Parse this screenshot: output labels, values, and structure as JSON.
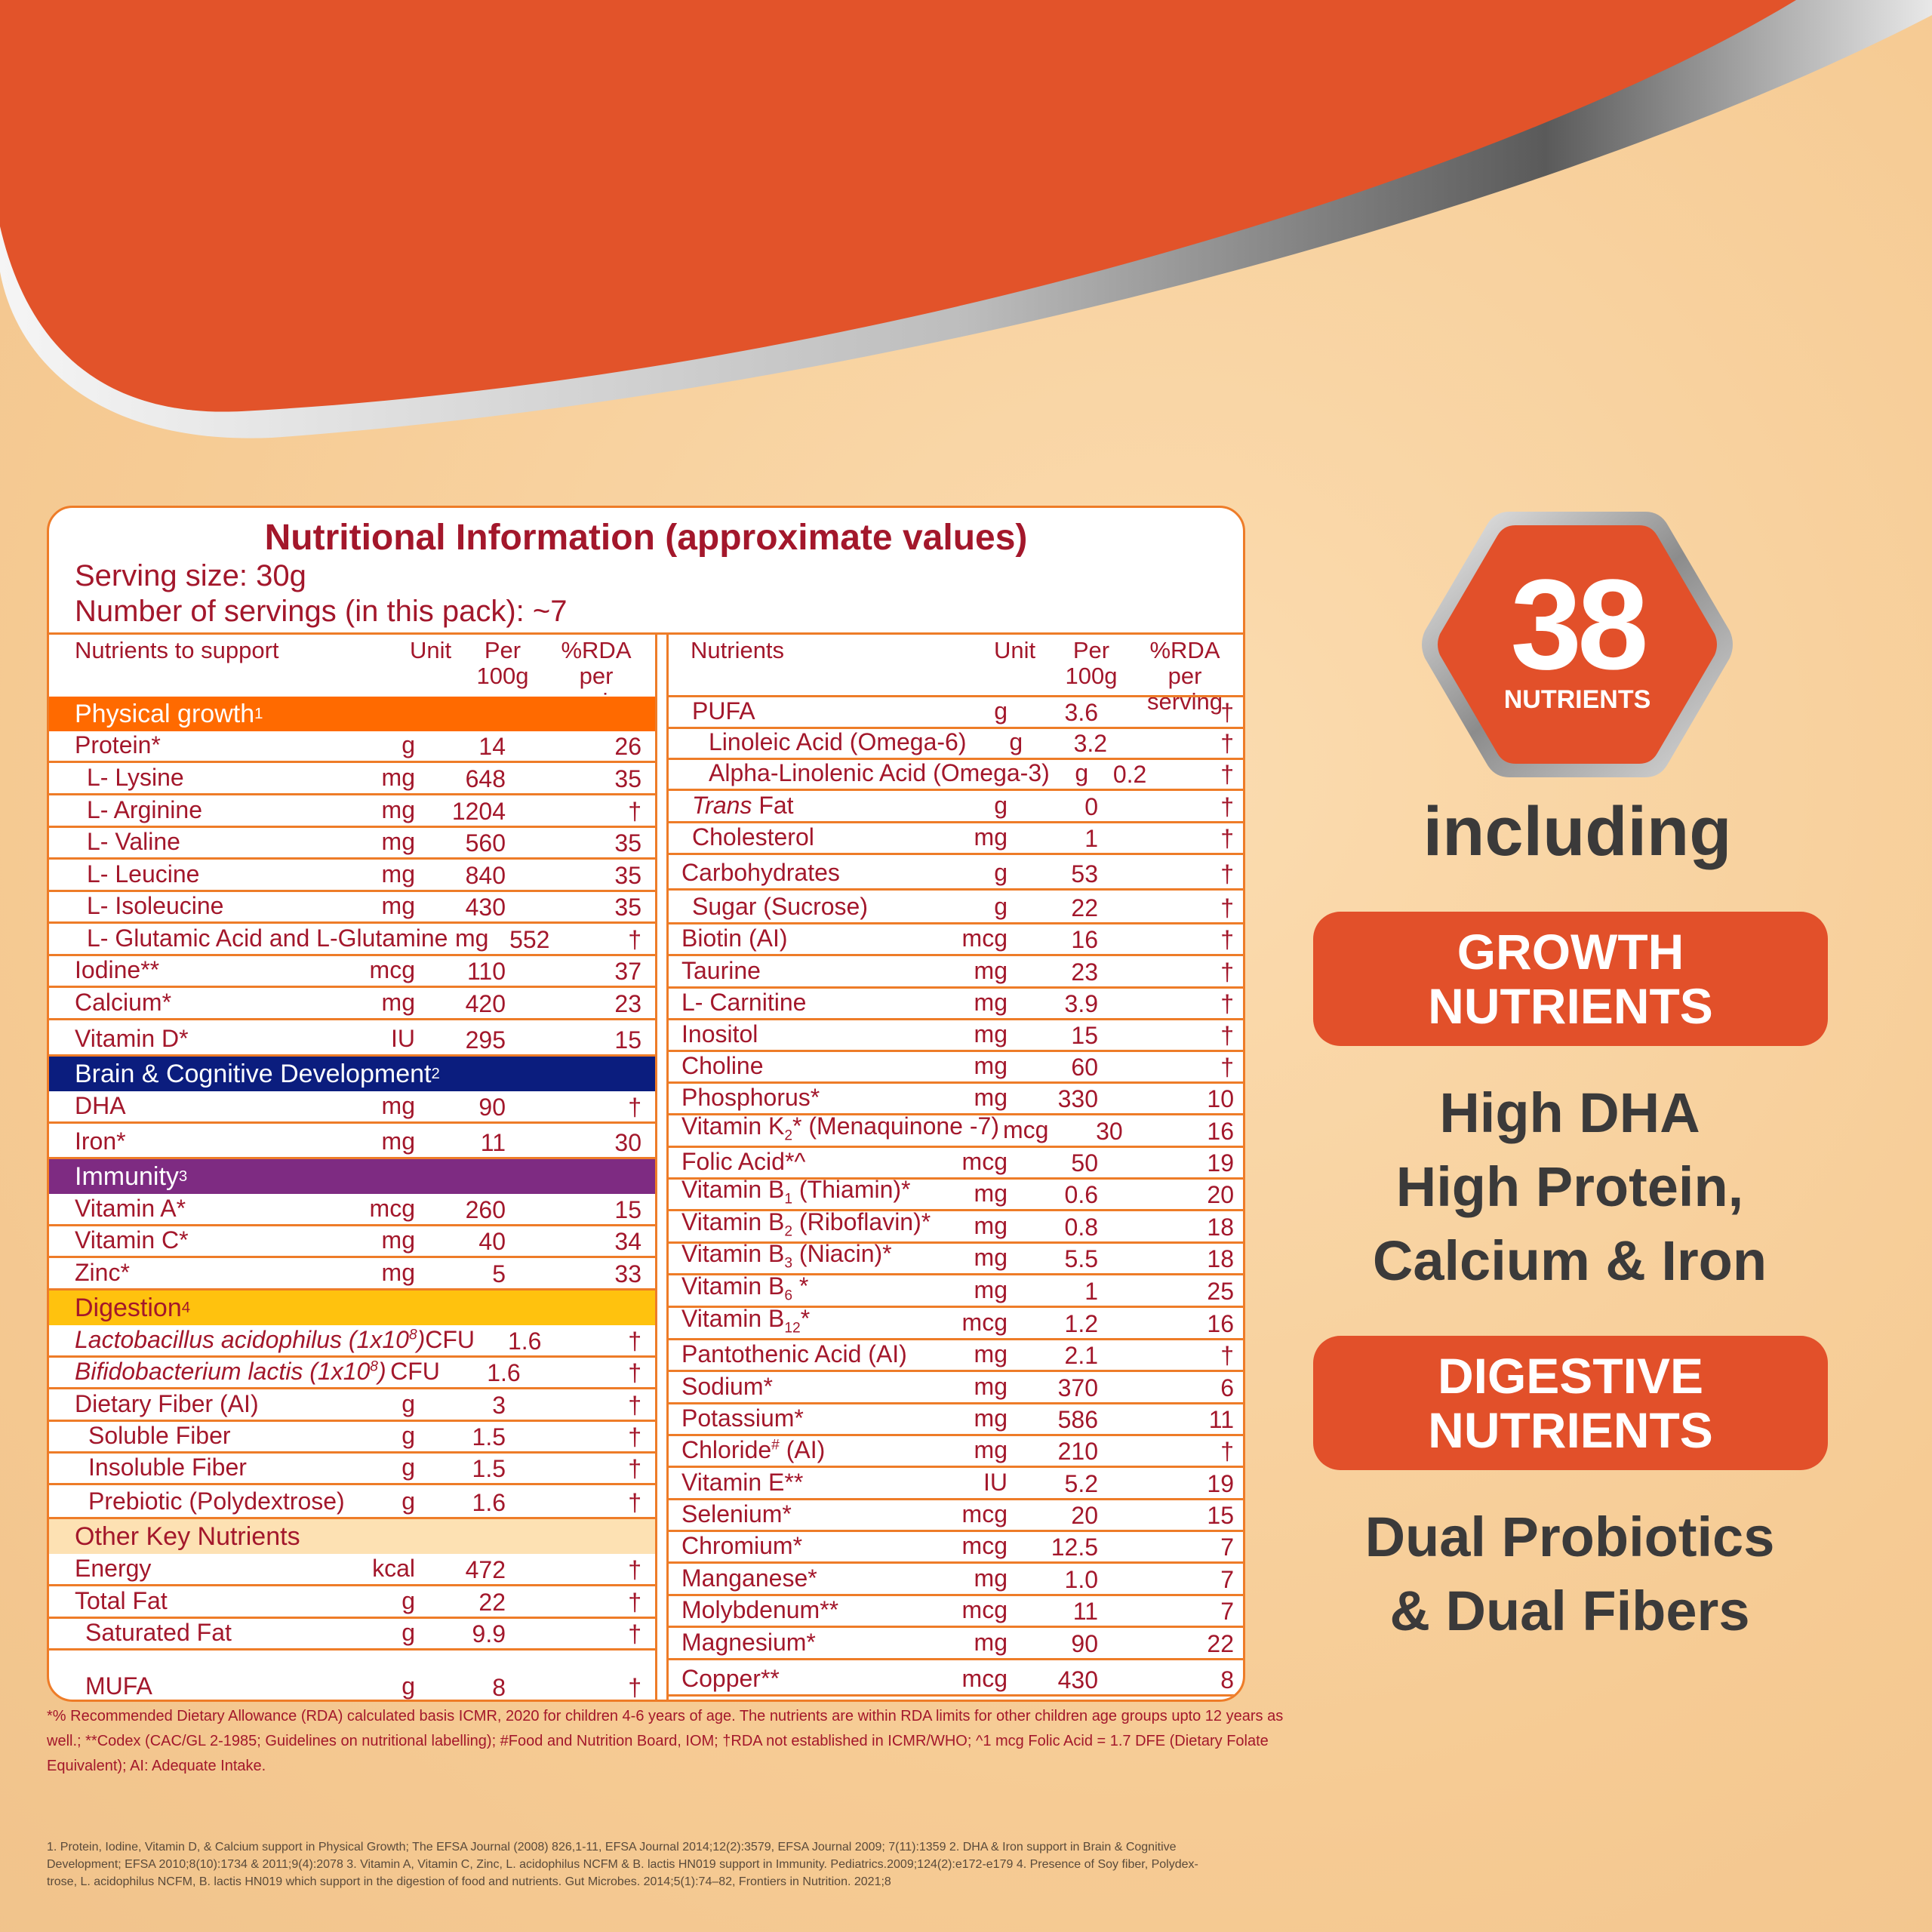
{
  "colors": {
    "orange": "#ee7c28",
    "maroon": "#a3172b",
    "physical": "#ff6a00",
    "brain": "#0b1d7e",
    "immunity": "#7e2b82",
    "digestion": "#ffc20e",
    "other": "#fde1b3",
    "badge": "#e2502a"
  },
  "panel": {
    "title": "Nutritional Information (approximate values)",
    "serving_size": "Serving size: 30g",
    "servings": "Number of servings (in this pack): ~7"
  },
  "left_header": {
    "nutrients": "Nutrients to support",
    "unit": "Unit",
    "per1": "Per",
    "per2": "100g",
    "rda1": "%RDA",
    "rda2": "per serving"
  },
  "right_header": {
    "nutrients": "Nutrients",
    "unit": "Unit",
    "per1": "Per",
    "per2": "100g",
    "rda1": "%RDA",
    "rda2": "per serving"
  },
  "sections": {
    "physical": {
      "label": "Physical growth",
      "sup": "1"
    },
    "brain": {
      "label": "Brain & Cognitive Development",
      "sup": "2"
    },
    "immunity": {
      "label": "Immunity",
      "sup": "3"
    },
    "digestion": {
      "label": "Digestion",
      "sup": "4"
    },
    "other": {
      "label": "Other Key Nutrients",
      "sup": ""
    }
  },
  "left_rows": [
    {
      "name": "Protein*",
      "unit": "g",
      "per": "14",
      "rda": "26"
    },
    {
      "name": "L- Lysine",
      "unit": "mg",
      "per": "648",
      "rda": "35"
    },
    {
      "name": "L- Arginine",
      "unit": "mg",
      "per": "1204",
      "rda": "†"
    },
    {
      "name": "L- Valine",
      "unit": "mg",
      "per": "560",
      "rda": "35"
    },
    {
      "name": "L- Leucine",
      "unit": "mg",
      "per": "840",
      "rda": "35"
    },
    {
      "name": "L- Isoleucine",
      "unit": "mg",
      "per": "430",
      "rda": "35"
    },
    {
      "name": "L- Glutamic Acid and L-Glutamine",
      "unit": "mg",
      "per": "552",
      "rda": "†"
    },
    {
      "name": "Iodine**",
      "unit": "mcg",
      "per": "110",
      "rda": "37"
    },
    {
      "name": "Calcium*",
      "unit": "mg",
      "per": "420",
      "rda": "23"
    },
    {
      "name": "Vitamin D*",
      "unit": "IU",
      "per": "295",
      "rda": "15"
    },
    {
      "name": "DHA",
      "unit": "mg",
      "per": "90",
      "rda": "†"
    },
    {
      "name": "Iron*",
      "unit": "mg",
      "per": "11",
      "rda": "30"
    },
    {
      "name": "Vitamin A*",
      "unit": "mcg",
      "per": "260",
      "rda": "15"
    },
    {
      "name": "Vitamin C*",
      "unit": "mg",
      "per": "40",
      "rda": "34"
    },
    {
      "name": "Zinc*",
      "unit": "mg",
      "per": "5",
      "rda": "33"
    },
    {
      "name": "Lactobacillus acidophilus (1x10",
      "sup": "8",
      "tail": ")",
      "unit": "CFU",
      "per": "1.6",
      "rda": "†"
    },
    {
      "name": "Bifidobacterium lactis (1x10",
      "sup": "8",
      "tail": ")",
      "unit": "CFU",
      "per": "1.6",
      "rda": "†"
    },
    {
      "name": "Dietary Fiber (AI)",
      "unit": "g",
      "per": "3",
      "rda": "†"
    },
    {
      "name": "Soluble Fiber",
      "unit": "g",
      "per": "1.5",
      "rda": "†"
    },
    {
      "name": "Insoluble Fiber",
      "unit": "g",
      "per": "1.5",
      "rda": "†"
    },
    {
      "name": "Prebiotic (Polydextrose)",
      "unit": "g",
      "per": "1.6",
      "rda": "†"
    },
    {
      "name": "Energy",
      "unit": "kcal",
      "per": "472",
      "rda": "†"
    },
    {
      "name": "Total Fat",
      "unit": "g",
      "per": "22",
      "rda": "†"
    },
    {
      "name": "Saturated Fat",
      "unit": "g",
      "per": "9.9",
      "rda": "†"
    },
    {
      "name": "MUFA",
      "unit": "g",
      "per": "8",
      "rda": "†"
    }
  ],
  "right_rows": [
    {
      "name": "PUFA",
      "unit": "g",
      "per": "3.6",
      "rda": "†"
    },
    {
      "name": "Linoleic Acid (Omega-6)",
      "unit": "g",
      "per": "3.2",
      "rda": "†"
    },
    {
      "name": "Alpha-Linolenic Acid (Omega-3)",
      "unit": "g",
      "per": "0.2",
      "rda": "†"
    },
    {
      "name": "Trans",
      "tail": " Fat",
      "unit": "g",
      "per": "0",
      "rda": "†"
    },
    {
      "name": "Cholesterol",
      "unit": "mg",
      "per": "1",
      "rda": "†"
    },
    {
      "name": "Carbohydrates",
      "unit": "g",
      "per": "53",
      "rda": "†"
    },
    {
      "name": "Sugar (Sucrose)",
      "unit": "g",
      "per": "22",
      "rda": "†"
    },
    {
      "name": "Biotin (AI)",
      "unit": "mcg",
      "per": "16",
      "rda": "†"
    },
    {
      "name": "Taurine",
      "unit": "mg",
      "per": "23",
      "rda": "†"
    },
    {
      "name": "L- Carnitine",
      "unit": "mg",
      "per": "3.9",
      "rda": "†"
    },
    {
      "name": "Inositol",
      "unit": "mg",
      "per": "15",
      "rda": "†"
    },
    {
      "name": "Choline",
      "unit": "mg",
      "per": "60",
      "rda": "†"
    },
    {
      "name": "Phosphorus*",
      "unit": "mg",
      "per": "330",
      "rda": "10"
    },
    {
      "name": "Vitamin K",
      "sub": "2",
      "tail": "* (Menaquinone -7)",
      "unit": "mcg",
      "per": "30",
      "rda": "16"
    },
    {
      "name": "Folic Acid*^",
      "unit": "mcg",
      "per": "50",
      "rda": "19"
    },
    {
      "name": "Vitamin B",
      "sub": "1",
      "tail": " (Thiamin)*",
      "unit": "mg",
      "per": "0.6",
      "rda": "20"
    },
    {
      "name": "Vitamin B",
      "sub": "2",
      "tail": " (Riboflavin)*",
      "unit": "mg",
      "per": "0.8",
      "rda": "18"
    },
    {
      "name": "Vitamin B",
      "sub": "3",
      "tail": " (Niacin)*",
      "unit": "mg",
      "per": "5.5",
      "rda": "18"
    },
    {
      "name": "Vitamin B",
      "sub": "6",
      "tail": " *",
      "unit": "mg",
      "per": "1",
      "rda": "25"
    },
    {
      "name": "Vitamin B",
      "sub": "12",
      "tail": "*",
      "unit": "mcg",
      "per": "1.2",
      "rda": "16"
    },
    {
      "name": "Pantothenic Acid (AI)",
      "unit": "mg",
      "per": "2.1",
      "rda": "†"
    },
    {
      "name": "Sodium*",
      "unit": "mg",
      "per": "370",
      "rda": "6"
    },
    {
      "name": "Potassium*",
      "unit": "mg",
      "per": "586",
      "rda": "11"
    },
    {
      "name": "Chloride",
      "sup": "#",
      "tail": " (AI)",
      "unit": "mg",
      "per": "210",
      "rda": "†"
    },
    {
      "name": "Vitamin E**",
      "unit": "IU",
      "per": "5.2",
      "rda": "19"
    },
    {
      "name": "Selenium*",
      "unit": "mcg",
      "per": "20",
      "rda": "15"
    },
    {
      "name": "Chromium*",
      "unit": "mcg",
      "per": "12.5",
      "rda": "7"
    },
    {
      "name": "Manganese*",
      "unit": "mg",
      "per": "1.0",
      "rda": "7"
    },
    {
      "name": "Molybdenum**",
      "unit": "mcg",
      "per": "11",
      "rda": "7"
    },
    {
      "name": "Magnesium*",
      "unit": "mg",
      "per": "90",
      "rda": "22"
    },
    {
      "name": "Copper**",
      "unit": "mcg",
      "per": "430",
      "rda": "8"
    }
  ],
  "footnote": {
    "line1": "*% Recommended Dietary Allowance (RDA) calculated basis  ICMR, 2020 for children 4-6 years of age. The nutrients are within RDA limits for other children age groups upto 12 years as",
    "line2": "well.; **Codex (CAC/GL 2-1985; Guidelines on nutritional labelling); #Food and Nutrition Board, IOM; †RDA not established in ICMR/WHO; ^1 mcg Folic Acid = 1.7 DFE (Dietary Folate",
    "line3": "Equivalent); AI: Adequate Intake."
  },
  "references": {
    "line1": "1. Protein, Iodine, Vitamin D, & Calcium support in Physical Growth; The EFSA Journal (2008) 826,1-11, EFSA Journal 2014;12(2):3579, EFSA Journal 2009; 7(11):1359 2. DHA & Iron support in Brain & Cognitive",
    "line2": "Development; EFSA 2010;8(10):1734 & 2011;9(4):2078 3. Vitamin A, Vitamin C, Zinc, L. acidophilus NCFM & B. lactis HN019 support in Immunity. Pediatrics.2009;124(2):e172-e179    4. Presence of Soy fiber, Polydex-",
    "line3": "trose, L. acidophilus NCFM, B. lactis HN019 which support in the digestion of food and nutrients. Gut Microbes. 2014;5(1):74–82, Frontiers in Nutrition. 2021;8"
  },
  "badge": {
    "number": "38",
    "label": "NUTRIENTS"
  },
  "including": "including",
  "growth_pill": {
    "line1": "GROWTH",
    "line2": "NUTRIENTS"
  },
  "growth_text": {
    "line1": "High DHA",
    "line2": "High Protein,",
    "line3": "Calcium & Iron"
  },
  "digestive_pill": {
    "line1": "DIGESTIVE",
    "line2": "NUTRIENTS"
  },
  "digestive_text": {
    "line1": "Dual Probiotics",
    "line2": "& Dual Fibers"
  },
  "icons": {
    "badge_shape": "hexagon-badge"
  }
}
